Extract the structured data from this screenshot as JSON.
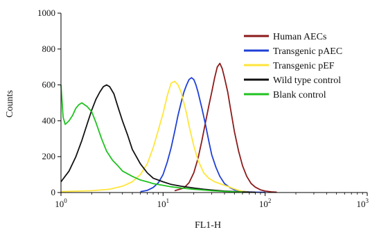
{
  "chart_data": {
    "type": "line",
    "title": "",
    "xlabel": "FL1-H",
    "ylabel": "Counts",
    "x_scale": "log",
    "xlim": [
      1,
      1000
    ],
    "ylim": [
      0,
      1000
    ],
    "x_ticks": [
      {
        "value": 1,
        "base": "10",
        "exp": "0"
      },
      {
        "value": 10,
        "base": "10",
        "exp": "1"
      },
      {
        "value": 100,
        "base": "10",
        "exp": "2"
      },
      {
        "value": 1000,
        "base": "10",
        "exp": "3"
      }
    ],
    "y_ticks": [
      {
        "value": 0,
        "label": "0"
      },
      {
        "value": 200,
        "label": "200"
      },
      {
        "value": 400,
        "label": "400"
      },
      {
        "value": 600,
        "label": "600"
      },
      {
        "value": 800,
        "label": "800"
      },
      {
        "value": 1000,
        "label": "1000"
      }
    ],
    "grid": false,
    "legend_position": "top-right",
    "series": [
      {
        "name": "Human AECs",
        "color": "#8b1a1a",
        "x": [
          13,
          16,
          18,
          20,
          22,
          24,
          26,
          28,
          30,
          32,
          34,
          36,
          38,
          40,
          43,
          46,
          50,
          55,
          60,
          66,
          73,
          80,
          90,
          100,
          115,
          130
        ],
        "y": [
          10,
          25,
          55,
          110,
          190,
          290,
          390,
          480,
          560,
          640,
          700,
          720,
          690,
          640,
          560,
          460,
          340,
          230,
          150,
          90,
          50,
          30,
          15,
          8,
          4,
          2
        ]
      },
      {
        "name": "Transgenic pAEC",
        "color": "#1e3fd6",
        "x": [
          6,
          7,
          8,
          9,
          10,
          11,
          12,
          13,
          14,
          15,
          16,
          17,
          18,
          19,
          20,
          21,
          22,
          24,
          26,
          28,
          30,
          33,
          36,
          40,
          45,
          50,
          60,
          70,
          80,
          100
        ],
        "y": [
          5,
          12,
          28,
          55,
          100,
          170,
          250,
          340,
          430,
          500,
          560,
          600,
          630,
          640,
          630,
          600,
          560,
          470,
          380,
          290,
          210,
          140,
          90,
          50,
          28,
          15,
          6,
          3,
          2,
          1
        ]
      },
      {
        "name": "Transgenic pEF",
        "color": "#ffe53a",
        "x": [
          1,
          2,
          3,
          4,
          5,
          6,
          7,
          8,
          9,
          10,
          11,
          12,
          13,
          14,
          15,
          16,
          17,
          18,
          20,
          22,
          25,
          28,
          32,
          36,
          40,
          45,
          50,
          55,
          60,
          70
        ],
        "y": [
          5,
          10,
          18,
          35,
          60,
          100,
          160,
          250,
          350,
          440,
          540,
          610,
          620,
          600,
          560,
          500,
          440,
          370,
          260,
          180,
          110,
          80,
          60,
          50,
          40,
          30,
          20,
          12,
          6,
          2
        ]
      },
      {
        "name": "Wild type control",
        "color": "#111111",
        "x": [
          1,
          1.2,
          1.4,
          1.6,
          1.8,
          2,
          2.2,
          2.4,
          2.6,
          2.8,
          3,
          3.3,
          3.6,
          4,
          4.5,
          5,
          6,
          7,
          8,
          10,
          12,
          15,
          20,
          25,
          30,
          40,
          50,
          60,
          70,
          80
        ],
        "y": [
          60,
          120,
          200,
          290,
          380,
          460,
          520,
          560,
          590,
          600,
          590,
          550,
          480,
          400,
          320,
          240,
          160,
          110,
          80,
          60,
          45,
          35,
          25,
          18,
          14,
          8,
          5,
          3,
          2,
          1
        ]
      },
      {
        "name": "Blank control",
        "color": "#1fc21f",
        "x": [
          1,
          1.05,
          1.1,
          1.2,
          1.3,
          1.4,
          1.5,
          1.6,
          1.8,
          2,
          2.2,
          2.5,
          2.8,
          3.2,
          3.6,
          4,
          5,
          6,
          7,
          8,
          10,
          12,
          15,
          20,
          25,
          30,
          40,
          50,
          60
        ],
        "y": [
          600,
          420,
          380,
          400,
          430,
          470,
          490,
          500,
          480,
          450,
          390,
          300,
          230,
          180,
          150,
          120,
          90,
          70,
          60,
          50,
          40,
          32,
          25,
          18,
          14,
          10,
          6,
          4,
          2
        ]
      }
    ]
  }
}
